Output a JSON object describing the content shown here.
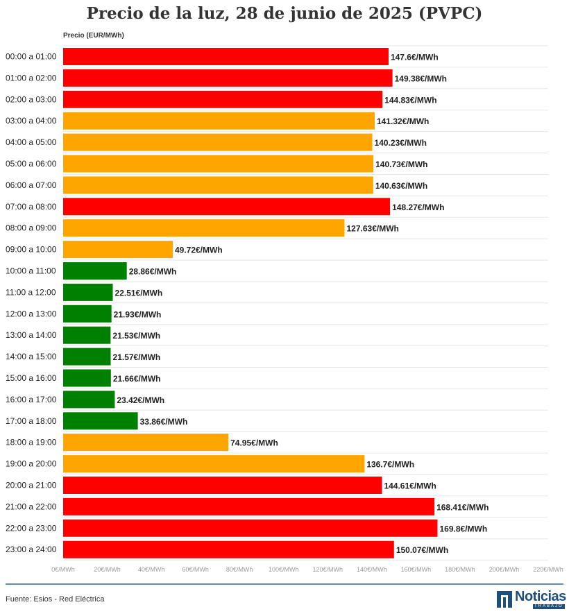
{
  "title": "Precio de la luz, 28 de junio de 2025 (PVPC)",
  "footer": {
    "source": "Fuente: Esios - Red Eléctrica",
    "logo_text": "Noticias",
    "logo_subtext": "TRABAJO"
  },
  "colors": {
    "high": "#ff0000",
    "medium": "#ffa500",
    "low": "#008000",
    "grid": "#e6e6e6",
    "footer_line": "#5b8db8"
  },
  "chart_data": {
    "type": "bar",
    "orientation": "horizontal",
    "title": "Precio de la luz, 28 de junio de 2025 (PVPC)",
    "xlabel": "",
    "ylabel": "Precio (EUR/MWh)",
    "xlim": [
      0,
      220
    ],
    "x_ticks": [
      0,
      20,
      40,
      60,
      80,
      100,
      120,
      140,
      160,
      180,
      200,
      220
    ],
    "x_tick_labels": [
      "0€/MWh",
      "20€/MWh",
      "40€/MWh",
      "60€/MWh",
      "80€/MWh",
      "100€/MWh",
      "120€/MWh",
      "140€/MWh",
      "160€/MWh",
      "180€/MWh",
      "200€/MWh",
      "220€/MWh"
    ],
    "grid": true,
    "categories": [
      "00:00 a 01:00",
      "01:00 a 02:00",
      "02:00 a 03:00",
      "03:00 a 04:00",
      "04:00 a 05:00",
      "05:00 a 06:00",
      "06:00 a 07:00",
      "07:00 a 08:00",
      "08:00 a 09:00",
      "09:00 a 10:00",
      "10:00 a 11:00",
      "11:00 a 12:00",
      "12:00 a 13:00",
      "13:00 a 14:00",
      "14:00 a 15:00",
      "15:00 a 16:00",
      "16:00 a 17:00",
      "17:00 a 18:00",
      "18:00 a 19:00",
      "19:00 a 20:00",
      "20:00 a 21:00",
      "21:00 a 22:00",
      "22:00 a 23:00",
      "23:00 a 24:00"
    ],
    "values": [
      147.6,
      149.38,
      144.83,
      141.32,
      140.23,
      140.73,
      140.63,
      148.27,
      127.63,
      49.72,
      28.86,
      22.51,
      21.93,
      21.53,
      21.57,
      21.66,
      23.42,
      33.86,
      74.95,
      136.7,
      144.61,
      168.41,
      169.8,
      150.07
    ],
    "value_labels": [
      "147.6€/MWh",
      "149.38€/MWh",
      "144.83€/MWh",
      "141.32€/MWh",
      "140.23€/MWh",
      "140.73€/MWh",
      "140.63€/MWh",
      "148.27€/MWh",
      "127.63€/MWh",
      "49.72€/MWh",
      "28.86€/MWh",
      "22.51€/MWh",
      "21.93€/MWh",
      "21.53€/MWh",
      "21.57€/MWh",
      "21.66€/MWh",
      "23.42€/MWh",
      "33.86€/MWh",
      "74.95€/MWh",
      "136.7€/MWh",
      "144.61€/MWh",
      "168.41€/MWh",
      "169.8€/MWh",
      "150.07€/MWh"
    ],
    "bar_colors": [
      "high",
      "high",
      "high",
      "medium",
      "medium",
      "medium",
      "medium",
      "high",
      "medium",
      "medium",
      "low",
      "low",
      "low",
      "low",
      "low",
      "low",
      "low",
      "low",
      "medium",
      "medium",
      "high",
      "high",
      "high",
      "high"
    ]
  }
}
